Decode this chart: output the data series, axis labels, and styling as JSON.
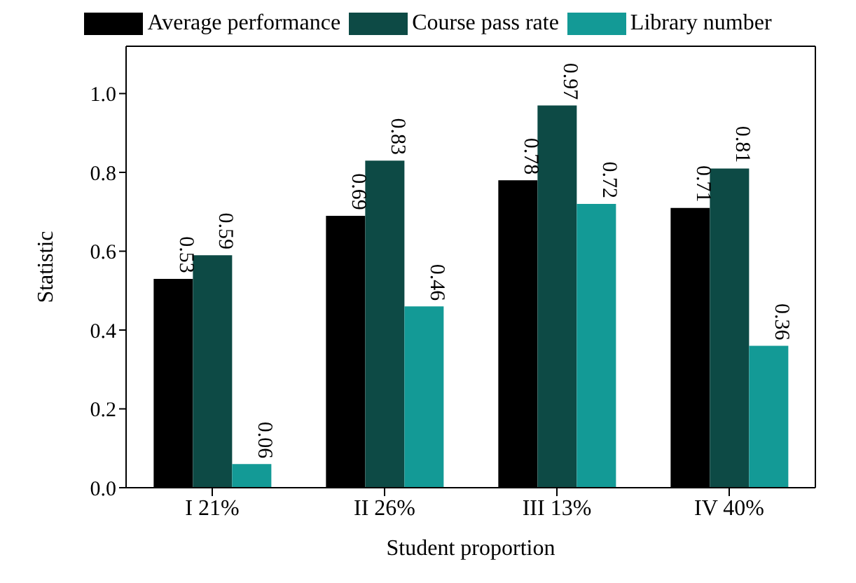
{
  "chart_data": {
    "type": "bar",
    "xlabel": "Student proportion",
    "ylabel": "Statistic",
    "categories": [
      "I 21%",
      "II 26%",
      "III 13%",
      "IV 40%"
    ],
    "series": [
      {
        "name": "Average performance",
        "color": "#000000",
        "values": [
          0.53,
          0.69,
          0.78,
          0.71
        ]
      },
      {
        "name": "Course pass rate",
        "color": "#0d4a45",
        "values": [
          0.59,
          0.83,
          0.97,
          0.81
        ]
      },
      {
        "name": "Library number",
        "color": "#139a96",
        "values": [
          0.06,
          0.46,
          0.72,
          0.36
        ]
      }
    ],
    "ylim": [
      0,
      1.12
    ],
    "yticks": [
      {
        "value": 0,
        "label": "0.0"
      },
      {
        "value": 0.2,
        "label": "0.2"
      },
      {
        "value": 0.4,
        "label": "0.4"
      },
      {
        "value": 0.6,
        "label": "0.6"
      },
      {
        "value": 0.8,
        "label": "0.8"
      },
      {
        "value": 1,
        "label": "1.0"
      }
    ],
    "data_labels": true,
    "grid": false,
    "legend": "top"
  }
}
